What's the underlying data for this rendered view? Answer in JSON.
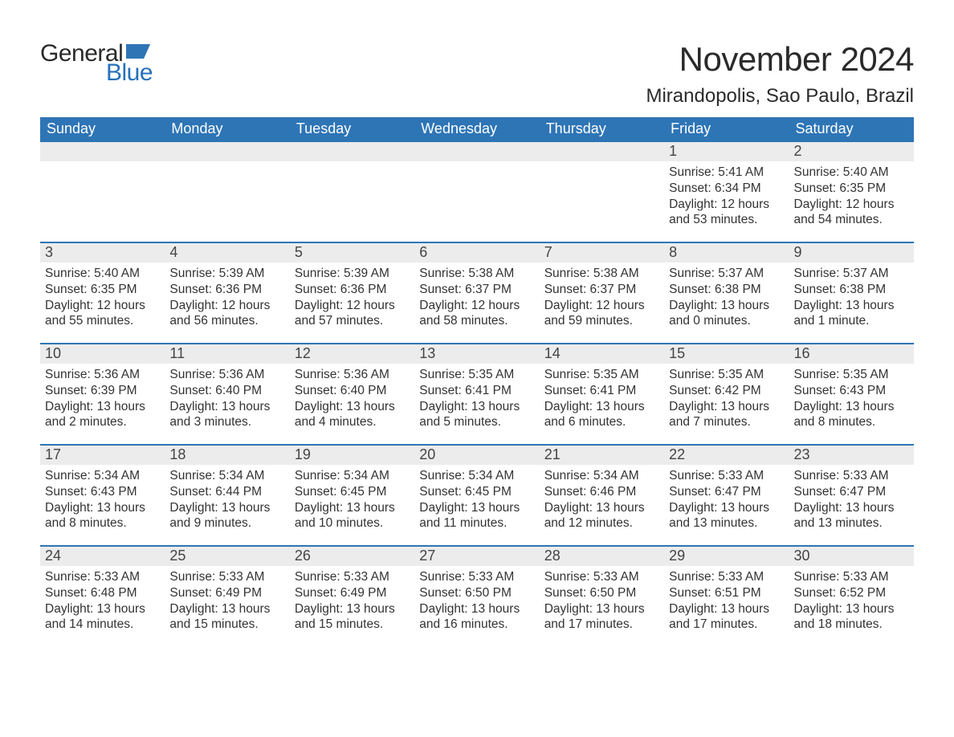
{
  "logo": {
    "text1": "General",
    "text2": "Blue",
    "icon_color": "#2e75b6"
  },
  "title": "November 2024",
  "location": "Mirandopolis, Sao Paulo, Brazil",
  "colors": {
    "header_bg": "#2e75b6",
    "header_text": "#ffffff",
    "daynum_bg": "#ececec",
    "week_border": "#2e75b6",
    "body_text": "#333333",
    "logo_blue": "#2770b9",
    "logo_dark": "#2a2a2a",
    "page_bg": "#ffffff"
  },
  "day_names": [
    "Sunday",
    "Monday",
    "Tuesday",
    "Wednesday",
    "Thursday",
    "Friday",
    "Saturday"
  ],
  "weeks": [
    [
      null,
      null,
      null,
      null,
      null,
      {
        "n": "1",
        "sunrise": "Sunrise: 5:41 AM",
        "sunset": "Sunset: 6:34 PM",
        "daylight": "Daylight: 12 hours and 53 minutes."
      },
      {
        "n": "2",
        "sunrise": "Sunrise: 5:40 AM",
        "sunset": "Sunset: 6:35 PM",
        "daylight": "Daylight: 12 hours and 54 minutes."
      }
    ],
    [
      {
        "n": "3",
        "sunrise": "Sunrise: 5:40 AM",
        "sunset": "Sunset: 6:35 PM",
        "daylight": "Daylight: 12 hours and 55 minutes."
      },
      {
        "n": "4",
        "sunrise": "Sunrise: 5:39 AM",
        "sunset": "Sunset: 6:36 PM",
        "daylight": "Daylight: 12 hours and 56 minutes."
      },
      {
        "n": "5",
        "sunrise": "Sunrise: 5:39 AM",
        "sunset": "Sunset: 6:36 PM",
        "daylight": "Daylight: 12 hours and 57 minutes."
      },
      {
        "n": "6",
        "sunrise": "Sunrise: 5:38 AM",
        "sunset": "Sunset: 6:37 PM",
        "daylight": "Daylight: 12 hours and 58 minutes."
      },
      {
        "n": "7",
        "sunrise": "Sunrise: 5:38 AM",
        "sunset": "Sunset: 6:37 PM",
        "daylight": "Daylight: 12 hours and 59 minutes."
      },
      {
        "n": "8",
        "sunrise": "Sunrise: 5:37 AM",
        "sunset": "Sunset: 6:38 PM",
        "daylight": "Daylight: 13 hours and 0 minutes."
      },
      {
        "n": "9",
        "sunrise": "Sunrise: 5:37 AM",
        "sunset": "Sunset: 6:38 PM",
        "daylight": "Daylight: 13 hours and 1 minute."
      }
    ],
    [
      {
        "n": "10",
        "sunrise": "Sunrise: 5:36 AM",
        "sunset": "Sunset: 6:39 PM",
        "daylight": "Daylight: 13 hours and 2 minutes."
      },
      {
        "n": "11",
        "sunrise": "Sunrise: 5:36 AM",
        "sunset": "Sunset: 6:40 PM",
        "daylight": "Daylight: 13 hours and 3 minutes."
      },
      {
        "n": "12",
        "sunrise": "Sunrise: 5:36 AM",
        "sunset": "Sunset: 6:40 PM",
        "daylight": "Daylight: 13 hours and 4 minutes."
      },
      {
        "n": "13",
        "sunrise": "Sunrise: 5:35 AM",
        "sunset": "Sunset: 6:41 PM",
        "daylight": "Daylight: 13 hours and 5 minutes."
      },
      {
        "n": "14",
        "sunrise": "Sunrise: 5:35 AM",
        "sunset": "Sunset: 6:41 PM",
        "daylight": "Daylight: 13 hours and 6 minutes."
      },
      {
        "n": "15",
        "sunrise": "Sunrise: 5:35 AM",
        "sunset": "Sunset: 6:42 PM",
        "daylight": "Daylight: 13 hours and 7 minutes."
      },
      {
        "n": "16",
        "sunrise": "Sunrise: 5:35 AM",
        "sunset": "Sunset: 6:43 PM",
        "daylight": "Daylight: 13 hours and 8 minutes."
      }
    ],
    [
      {
        "n": "17",
        "sunrise": "Sunrise: 5:34 AM",
        "sunset": "Sunset: 6:43 PM",
        "daylight": "Daylight: 13 hours and 8 minutes."
      },
      {
        "n": "18",
        "sunrise": "Sunrise: 5:34 AM",
        "sunset": "Sunset: 6:44 PM",
        "daylight": "Daylight: 13 hours and 9 minutes."
      },
      {
        "n": "19",
        "sunrise": "Sunrise: 5:34 AM",
        "sunset": "Sunset: 6:45 PM",
        "daylight": "Daylight: 13 hours and 10 minutes."
      },
      {
        "n": "20",
        "sunrise": "Sunrise: 5:34 AM",
        "sunset": "Sunset: 6:45 PM",
        "daylight": "Daylight: 13 hours and 11 minutes."
      },
      {
        "n": "21",
        "sunrise": "Sunrise: 5:34 AM",
        "sunset": "Sunset: 6:46 PM",
        "daylight": "Daylight: 13 hours and 12 minutes."
      },
      {
        "n": "22",
        "sunrise": "Sunrise: 5:33 AM",
        "sunset": "Sunset: 6:47 PM",
        "daylight": "Daylight: 13 hours and 13 minutes."
      },
      {
        "n": "23",
        "sunrise": "Sunrise: 5:33 AM",
        "sunset": "Sunset: 6:47 PM",
        "daylight": "Daylight: 13 hours and 13 minutes."
      }
    ],
    [
      {
        "n": "24",
        "sunrise": "Sunrise: 5:33 AM",
        "sunset": "Sunset: 6:48 PM",
        "daylight": "Daylight: 13 hours and 14 minutes."
      },
      {
        "n": "25",
        "sunrise": "Sunrise: 5:33 AM",
        "sunset": "Sunset: 6:49 PM",
        "daylight": "Daylight: 13 hours and 15 minutes."
      },
      {
        "n": "26",
        "sunrise": "Sunrise: 5:33 AM",
        "sunset": "Sunset: 6:49 PM",
        "daylight": "Daylight: 13 hours and 15 minutes."
      },
      {
        "n": "27",
        "sunrise": "Sunrise: 5:33 AM",
        "sunset": "Sunset: 6:50 PM",
        "daylight": "Daylight: 13 hours and 16 minutes."
      },
      {
        "n": "28",
        "sunrise": "Sunrise: 5:33 AM",
        "sunset": "Sunset: 6:50 PM",
        "daylight": "Daylight: 13 hours and 17 minutes."
      },
      {
        "n": "29",
        "sunrise": "Sunrise: 5:33 AM",
        "sunset": "Sunset: 6:51 PM",
        "daylight": "Daylight: 13 hours and 17 minutes."
      },
      {
        "n": "30",
        "sunrise": "Sunrise: 5:33 AM",
        "sunset": "Sunset: 6:52 PM",
        "daylight": "Daylight: 13 hours and 18 minutes."
      }
    ]
  ]
}
